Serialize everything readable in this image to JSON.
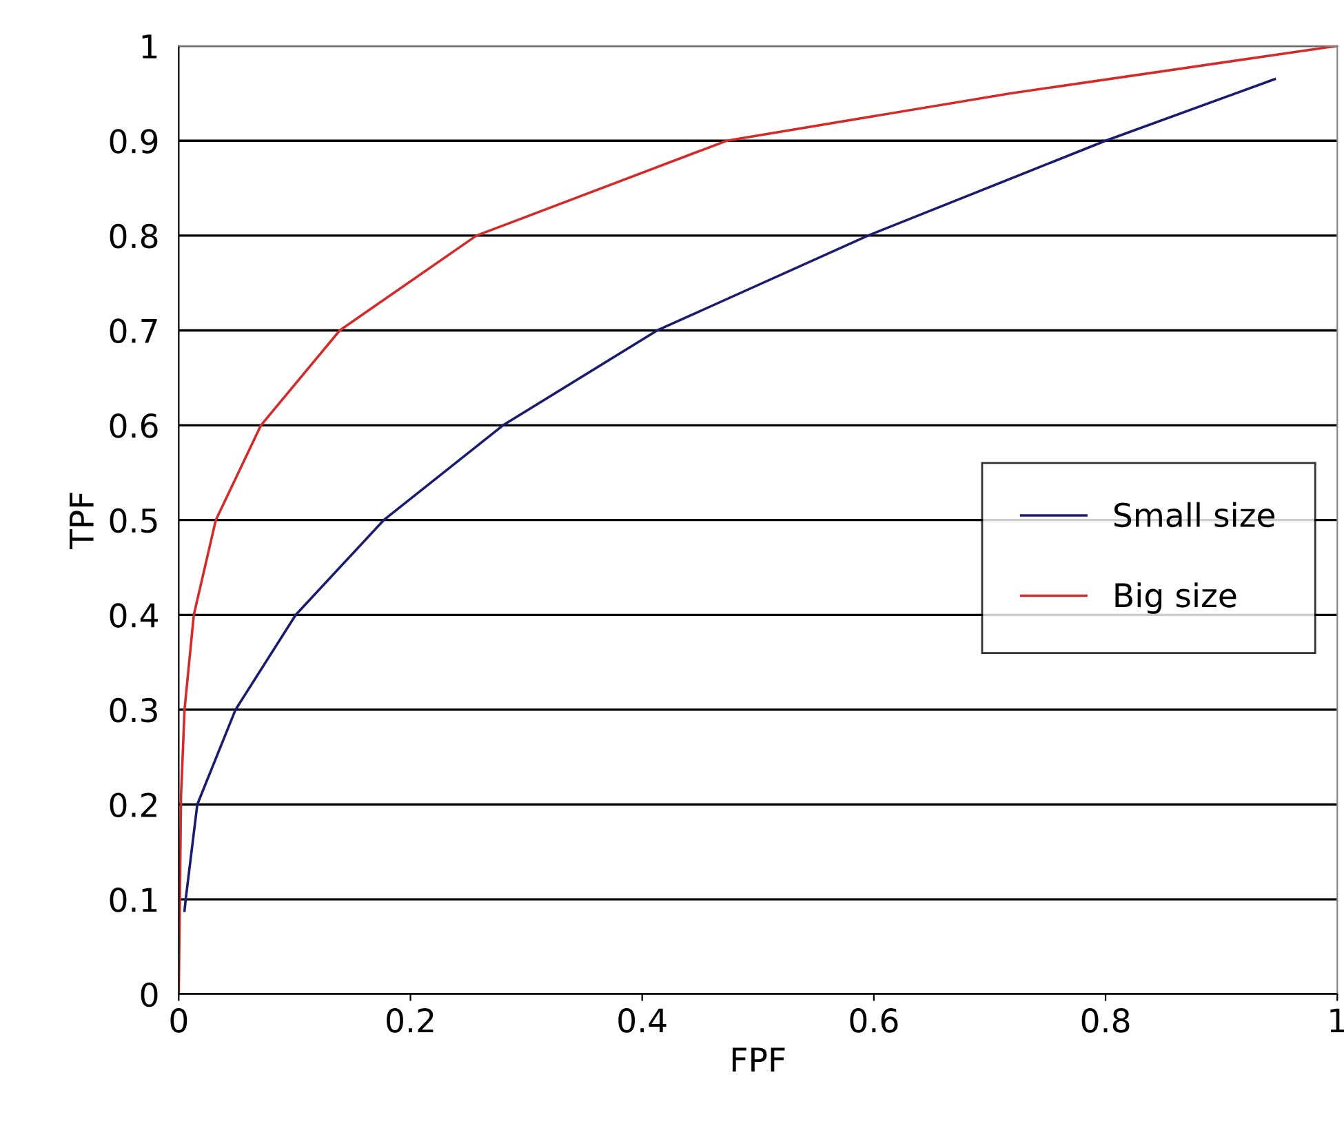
{
  "chart_data": {
    "type": "line",
    "xlabel": "FPF",
    "ylabel": "TPF",
    "xlim": [
      0,
      1
    ],
    "ylim": [
      0,
      1
    ],
    "xticks": [
      0,
      {
        "value": 0.2,
        "label": "0.2"
      },
      {
        "value": 0.4,
        "label": "0.4"
      },
      {
        "value": 0.6,
        "label": "0.6"
      },
      {
        "value": 0.8,
        "label": "0.8"
      },
      1
    ],
    "yticks": [
      0,
      {
        "value": 0.1,
        "label": "0.1"
      },
      {
        "value": 0.2,
        "label": "0.2"
      },
      {
        "value": 0.3,
        "label": "0.3"
      },
      {
        "value": 0.4,
        "label": "0.4"
      },
      {
        "value": 0.5,
        "label": "0.5"
      },
      {
        "value": 0.6,
        "label": "0.6"
      },
      {
        "value": 0.7,
        "label": "0.7"
      },
      {
        "value": 0.8,
        "label": "0.8"
      },
      {
        "value": 0.9,
        "label": "0.9"
      },
      1
    ],
    "grid": "y",
    "legend": "right",
    "marker": "none",
    "line_style": "solid",
    "series": [
      {
        "name": "Small size",
        "color": "#1c1c6e",
        "x": [
          0.005,
          0.006,
          0.016,
          0.049,
          0.101,
          0.177,
          0.28,
          0.413,
          0.595,
          0.8,
          0.946
        ],
        "values": [
          0.088,
          0.1,
          0.2,
          0.3,
          0.4,
          0.5,
          0.6,
          0.7,
          0.8,
          0.9,
          0.965
        ]
      },
      {
        "name": "Big size",
        "color": "#d42a2a",
        "x": [
          0,
          0.002,
          0.005,
          0.013,
          0.032,
          0.071,
          0.139,
          0.257,
          0.473,
          0.718,
          1
        ],
        "values": [
          0,
          0.21,
          0.3,
          0.4,
          0.5,
          0.6,
          0.7,
          0.8,
          0.9,
          0.95,
          1
        ]
      }
    ]
  }
}
